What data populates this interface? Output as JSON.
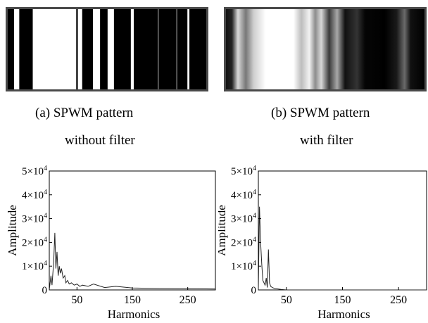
{
  "panel_a": {
    "caption_line1": "(a)  SPWM  pattern",
    "caption_line2": "without  filter",
    "stripes": "dark / light bands (fraction of width)"
  },
  "panel_b": {
    "caption_line1": "(b)  SPWM  pattern",
    "caption_line2": "with  filter"
  },
  "chart_data": [
    {
      "type": "line",
      "xlabel": "Harmonics",
      "ylabel": "Amplitude",
      "xlim": [
        0,
        300
      ],
      "ylim": [
        0,
        50000
      ],
      "x_ticks": [
        50,
        150,
        250
      ],
      "y_ticks": [
        0,
        10000,
        20000,
        30000,
        40000,
        50000
      ],
      "y_tick_labels": [
        "0",
        "1×10⁴",
        "2×10⁴",
        "3×10⁴",
        "4×10⁴",
        "5×10⁴"
      ],
      "series": [
        {
          "x": [
            0,
            3,
            5,
            8,
            10,
            12,
            14,
            16,
            18,
            20,
            22,
            25,
            28,
            30,
            33,
            36,
            40,
            45,
            50,
            55,
            60,
            70,
            80,
            100,
            120,
            150,
            200,
            250,
            300
          ],
          "values": [
            0,
            6000,
            2000,
            12000,
            24000,
            9000,
            16000,
            6000,
            10000,
            7000,
            9000,
            5000,
            6000,
            3000,
            4000,
            2500,
            3000,
            2000,
            2500,
            1500,
            2000,
            1500,
            2500,
            1000,
            1500,
            800,
            600,
            500,
            400
          ]
        }
      ]
    },
    {
      "type": "line",
      "xlabel": "Harmonics",
      "ylabel": "Amplitude",
      "xlim": [
        0,
        300
      ],
      "ylim": [
        0,
        50000
      ],
      "x_ticks": [
        50,
        150,
        250
      ],
      "y_ticks": [
        0,
        10000,
        20000,
        30000,
        40000,
        50000
      ],
      "y_tick_labels": [
        "0",
        "1×10⁴",
        "2×10⁴",
        "3×10⁴",
        "4×10⁴",
        "5×10⁴"
      ],
      "series": [
        {
          "x": [
            0,
            2,
            4,
            6,
            8,
            10,
            12,
            14,
            16,
            18,
            20,
            22,
            25,
            30,
            35,
            40,
            50,
            100,
            200,
            300
          ],
          "values": [
            0,
            35000,
            20000,
            11000,
            4000,
            3000,
            2000,
            5000,
            1000,
            17000,
            3000,
            1500,
            1000,
            500,
            400,
            200,
            0,
            0,
            0,
            0
          ]
        }
      ]
    }
  ]
}
